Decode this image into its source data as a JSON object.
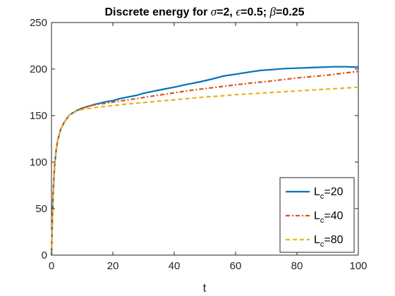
{
  "chart_data": {
    "type": "line",
    "title_parts": {
      "prefix": "Discrete energy for ",
      "sigma_sym": "σ",
      "sigma_val": "=2, ",
      "eps_sym": "ϵ",
      "eps_val": "=0.5; ",
      "beta_sym": "β",
      "beta_val": "=0.25"
    },
    "xlabel": "t",
    "ylabel": "",
    "xlim": [
      0,
      100
    ],
    "ylim": [
      0,
      250
    ],
    "xticks": [
      0,
      20,
      40,
      60,
      80,
      100
    ],
    "yticks": [
      0,
      50,
      100,
      150,
      200,
      250
    ],
    "grid": false,
    "legend_position": "bottom-right",
    "series": [
      {
        "name_base": "L",
        "name_sub": "c",
        "name_rest": "=20",
        "color": "#0072BD",
        "style": "solid",
        "x": [
          0,
          0.3,
          0.6,
          1,
          1.5,
          2,
          3,
          4,
          5,
          6,
          7,
          8,
          9,
          10,
          12,
          14,
          16,
          18,
          20,
          22,
          25,
          28,
          30,
          33,
          36,
          40,
          44,
          48,
          52,
          56,
          60,
          64,
          68,
          72,
          76,
          80,
          84,
          88,
          92,
          96,
          100
        ],
        "y": [
          0,
          40,
          70,
          95,
          112,
          123,
          135,
          142,
          147,
          151,
          153,
          155,
          156.5,
          158,
          160,
          162,
          163.5,
          165,
          166,
          168,
          170,
          172,
          174,
          176,
          178,
          180.5,
          183.5,
          186,
          189,
          192.5,
          194.5,
          196.5,
          198.5,
          199.5,
          200.5,
          201,
          201.5,
          202,
          202.5,
          202.5,
          202
        ]
      },
      {
        "name_base": "L",
        "name_sub": "c",
        "name_rest": "=40",
        "color": "#D95319",
        "style": "dashdot",
        "x": [
          0,
          0.3,
          0.6,
          1,
          1.5,
          2,
          3,
          4,
          5,
          6,
          7,
          8,
          9,
          10,
          12,
          14,
          16,
          18,
          20,
          25,
          30,
          35,
          40,
          45,
          50,
          55,
          60,
          65,
          70,
          75,
          80,
          85,
          90,
          95,
          100
        ],
        "y": [
          0,
          40,
          70,
          95,
          112,
          123,
          135,
          142,
          147,
          151,
          153,
          155,
          156.5,
          158,
          160,
          161.5,
          162.5,
          163.5,
          164.5,
          167,
          169.5,
          172,
          174.5,
          177,
          179,
          181,
          183,
          185,
          186.5,
          188.5,
          190.5,
          192,
          193.5,
          195.5,
          197.5
        ]
      },
      {
        "name_base": "L",
        "name_sub": "c",
        "name_rest": "=80",
        "color": "#EDB120",
        "style": "dashed",
        "x": [
          0,
          0.3,
          0.6,
          1,
          1.5,
          2,
          3,
          4,
          5,
          6,
          7,
          8,
          9,
          10,
          12,
          14,
          16,
          18,
          20,
          25,
          30,
          35,
          40,
          45,
          50,
          55,
          60,
          65,
          70,
          75,
          80,
          85,
          90,
          95,
          100
        ],
        "y": [
          0,
          40,
          70,
          95,
          112,
          123,
          135,
          142,
          147,
          151,
          153,
          154.5,
          155.5,
          156.5,
          157.5,
          158.5,
          159.5,
          160,
          160.8,
          162.5,
          164,
          165.5,
          167,
          168.5,
          170,
          171,
          172.5,
          173.5,
          174.5,
          175.5,
          176.5,
          177.5,
          178.5,
          179.5,
          180.5
        ]
      }
    ]
  }
}
